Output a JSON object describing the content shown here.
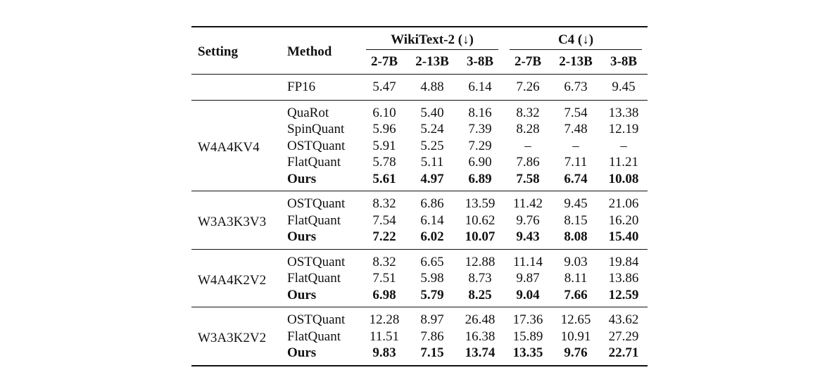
{
  "headers": {
    "setting": "Setting",
    "method": "Method",
    "wiki": "WikiText-2 (↓)",
    "c4": "C4 (↓)",
    "models": [
      "2-7B",
      "2-13B",
      "3-8B",
      "2-7B",
      "2-13B",
      "3-8B"
    ]
  },
  "fp16": {
    "method": "FP16",
    "values": [
      "5.47",
      "4.88",
      "6.14",
      "7.26",
      "6.73",
      "9.45"
    ]
  },
  "groups": [
    {
      "setting": "W4A4KV4",
      "rows": [
        {
          "method": "QuaRot",
          "values": [
            "6.10",
            "5.40",
            "8.16",
            "8.32",
            "7.54",
            "13.38"
          ]
        },
        {
          "method": "SpinQuant",
          "values": [
            "5.96",
            "5.24",
            "7.39",
            "8.28",
            "7.48",
            "12.19"
          ]
        },
        {
          "method": "OSTQuant",
          "values": [
            "5.91",
            "5.25",
            "7.29",
            "–",
            "–",
            "–"
          ]
        },
        {
          "method": "FlatQuant",
          "values": [
            "5.78",
            "5.11",
            "6.90",
            "7.86",
            "7.11",
            "11.21"
          ]
        },
        {
          "method": "Ours",
          "values": [
            "5.61",
            "4.97",
            "6.89",
            "7.58",
            "6.74",
            "10.08"
          ]
        }
      ]
    },
    {
      "setting": "W3A3K3V3",
      "rows": [
        {
          "method": "OSTQuant",
          "values": [
            "8.32",
            "6.86",
            "13.59",
            "11.42",
            "9.45",
            "21.06"
          ]
        },
        {
          "method": "FlatQuant",
          "values": [
            "7.54",
            "6.14",
            "10.62",
            "9.76",
            "8.15",
            "16.20"
          ]
        },
        {
          "method": "Ours",
          "values": [
            "7.22",
            "6.02",
            "10.07",
            "9.43",
            "8.08",
            "15.40"
          ]
        }
      ]
    },
    {
      "setting": "W4A4K2V2",
      "rows": [
        {
          "method": "OSTQuant",
          "values": [
            "8.32",
            "6.65",
            "12.88",
            "11.14",
            "9.03",
            "19.84"
          ]
        },
        {
          "method": "FlatQuant",
          "values": [
            "7.51",
            "5.98",
            "8.73",
            "9.87",
            "8.11",
            "13.86"
          ]
        },
        {
          "method": "Ours",
          "values": [
            "6.98",
            "5.79",
            "8.25",
            "9.04",
            "7.66",
            "12.59"
          ]
        }
      ]
    },
    {
      "setting": "W3A3K2V2",
      "rows": [
        {
          "method": "OSTQuant",
          "values": [
            "12.28",
            "8.97",
            "26.48",
            "17.36",
            "12.65",
            "43.62"
          ]
        },
        {
          "method": "FlatQuant",
          "values": [
            "11.51",
            "7.86",
            "16.38",
            "15.89",
            "10.91",
            "27.29"
          ]
        },
        {
          "method": "Ours",
          "values": [
            "9.83",
            "7.15",
            "13.74",
            "13.35",
            "9.76",
            "22.71"
          ]
        }
      ]
    }
  ]
}
